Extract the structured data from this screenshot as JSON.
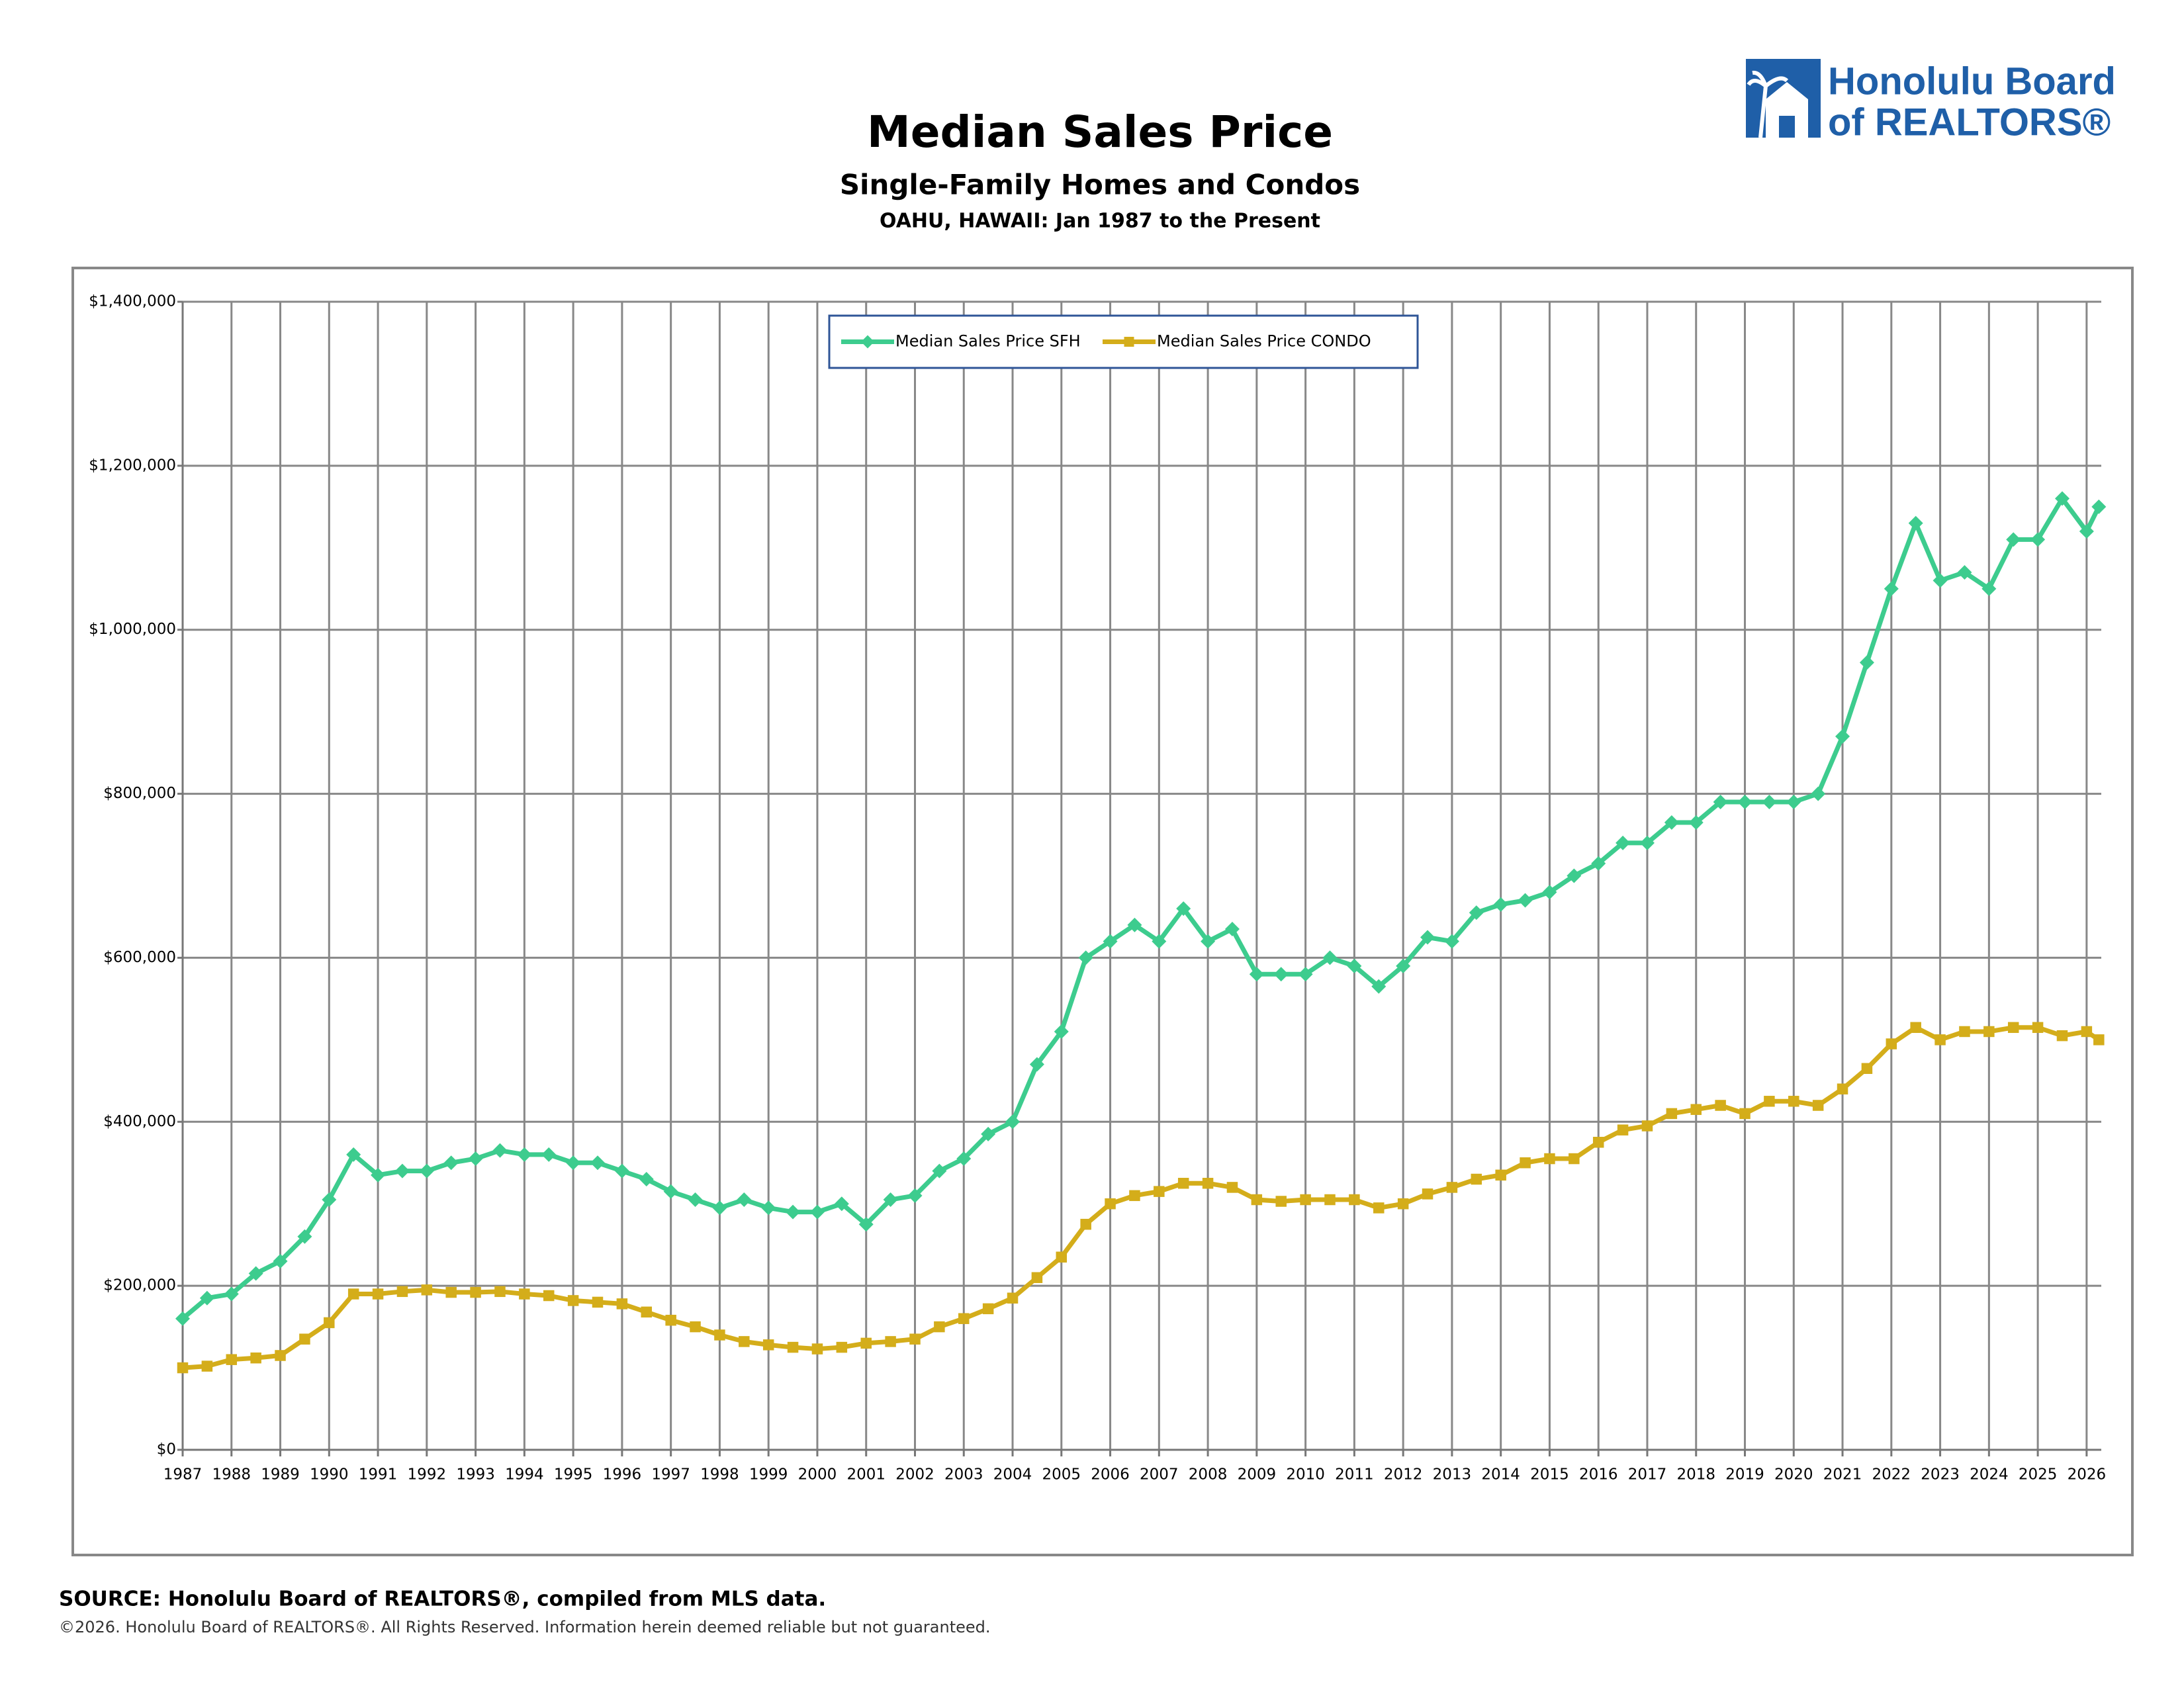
{
  "chart_data": {
    "type": "line",
    "title": "Median Sales Price",
    "subtitle": [
      "Single-Family Homes and Condos",
      "OAHU, HAWAII: Jan 1987 to the Present"
    ],
    "x": [
      1987,
      1987.5,
      1988,
      1988.5,
      1989,
      1989.5,
      1990,
      1990.5,
      1991,
      1991.5,
      1992,
      1992.5,
      1993,
      1993.5,
      1994,
      1994.5,
      1995,
      1995.5,
      1996,
      1996.5,
      1997,
      1997.5,
      1998,
      1998.5,
      1999,
      1999.5,
      2000,
      2000.5,
      2001,
      2001.5,
      2002,
      2002.5,
      2003,
      2003.5,
      2004,
      2004.5,
      2005,
      2005.5,
      2006,
      2006.5,
      2007,
      2007.5,
      2008,
      2008.5,
      2009,
      2009.5,
      2010,
      2010.5,
      2011,
      2011.5,
      2012,
      2012.5,
      2013,
      2013.5,
      2014,
      2014.5,
      2015,
      2015.5,
      2016,
      2016.5,
      2017,
      2017.5,
      2018,
      2018.5,
      2019,
      2019.5,
      2020,
      2020.5,
      2021,
      2021.5,
      2022,
      2022.5,
      2023,
      2023.5,
      2024,
      2024.5,
      2025,
      2025.5,
      2026,
      2026.25
    ],
    "series": [
      {
        "name": "Median Sales Price SFH",
        "color": "#3dcc8e",
        "marker": "diamond",
        "values": [
          160000,
          185000,
          190000,
          215000,
          230000,
          260000,
          305000,
          360000,
          335000,
          340000,
          340000,
          350000,
          355000,
          365000,
          360000,
          360000,
          350000,
          350000,
          340000,
          330000,
          315000,
          305000,
          295000,
          305000,
          295000,
          290000,
          290000,
          300000,
          275000,
          305000,
          310000,
          340000,
          355000,
          385000,
          400000,
          470000,
          510000,
          600000,
          620000,
          640000,
          620000,
          660000,
          620000,
          635000,
          580000,
          580000,
          580000,
          600000,
          590000,
          565000,
          590000,
          625000,
          620000,
          655000,
          665000,
          670000,
          680000,
          700000,
          715000,
          740000,
          740000,
          765000,
          765000,
          790000,
          790000,
          790000,
          790000,
          800000,
          870000,
          960000,
          1050000,
          1130000,
          1060000,
          1070000,
          1050000,
          1110000,
          1110000,
          1160000,
          1120000,
          1150000
        ]
      },
      {
        "name": "Median Sales Price CONDO",
        "color": "#d4ad1a",
        "marker": "square",
        "values": [
          100000,
          102000,
          110000,
          112000,
          115000,
          135000,
          155000,
          190000,
          190000,
          193000,
          195000,
          192000,
          192000,
          193000,
          190000,
          188000,
          182000,
          180000,
          178000,
          168000,
          158000,
          150000,
          140000,
          132000,
          128000,
          125000,
          123000,
          125000,
          130000,
          132000,
          135000,
          150000,
          160000,
          172000,
          185000,
          210000,
          235000,
          275000,
          300000,
          310000,
          315000,
          325000,
          325000,
          320000,
          305000,
          303000,
          305000,
          305000,
          305000,
          295000,
          300000,
          312000,
          320000,
          330000,
          335000,
          350000,
          355000,
          355000,
          375000,
          390000,
          395000,
          410000,
          415000,
          420000,
          410000,
          425000,
          425000,
          420000,
          440000,
          465000,
          495000,
          515000,
          500000,
          510000,
          510000,
          515000,
          515000,
          505000,
          510000,
          500000
        ]
      }
    ],
    "xlim": [
      1987,
      2026.3
    ],
    "xticks": [
      1987,
      1988,
      1989,
      1990,
      1991,
      1992,
      1993,
      1994,
      1995,
      1996,
      1997,
      1998,
      1999,
      2000,
      2001,
      2002,
      2003,
      2004,
      2005,
      2006,
      2007,
      2008,
      2009,
      2010,
      2011,
      2012,
      2013,
      2014,
      2015,
      2016,
      2017,
      2018,
      2019,
      2020,
      2021,
      2022,
      2023,
      2024,
      2025,
      2026
    ],
    "ylim": [
      0,
      1400000
    ],
    "yticks": [
      {
        "value": 0,
        "label": "$0"
      },
      {
        "value": 200000,
        "label": "$200,000"
      },
      {
        "value": 400000,
        "label": "$400,000"
      },
      {
        "value": 600000,
        "label": "$600,000"
      },
      {
        "value": 800000,
        "label": "$800,000"
      },
      {
        "value": 1000000,
        "label": "$1,000,000"
      },
      {
        "value": 1200000,
        "label": "$1,200,000"
      },
      {
        "value": 1400000,
        "label": "$1,400,000"
      }
    ],
    "grid": true,
    "legend": "top-center"
  },
  "logo": [
    "Honolulu Board",
    "of REALTORS®"
  ],
  "source": "SOURCE: Honolulu Board of REALTORS®, compiled from MLS data.",
  "copyright": "©2026. Honolulu Board of REALTORS®. All Rights Reserved. Information herein deemed reliable but not guaranteed."
}
